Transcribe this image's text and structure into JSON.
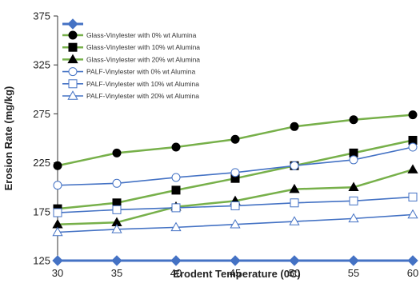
{
  "chart_data": {
    "type": "line",
    "xlabel": "Erodent Temperature (0C)",
    "ylabel": "Erosion Rate (mg/kg)",
    "xlim": [
      30,
      60
    ],
    "ylim": [
      125,
      375
    ],
    "xticks": [
      30,
      35,
      40,
      45,
      50,
      55,
      60
    ],
    "yticks": [
      125,
      175,
      225,
      275,
      325,
      375
    ],
    "x": [
      30,
      35,
      40,
      45,
      50,
      55,
      60
    ],
    "grid": false,
    "legend_position": "top-left",
    "baseline_series": {
      "values": [
        125,
        125,
        125,
        125,
        125,
        125,
        125
      ],
      "color": "#4472C4",
      "marker": "diamond",
      "legend_marker_only": true
    },
    "series": [
      {
        "name": "Glass-Vinylester with 0% wt Alumina",
        "values": [
          222,
          235,
          241,
          249,
          262,
          269,
          274
        ],
        "color": "#77B04A",
        "marker": "circle",
        "filled": true
      },
      {
        "name": "Glass-Vinylester with 10% wt Alumina",
        "values": [
          178,
          184,
          197,
          209,
          222,
          235,
          248
        ],
        "color": "#77B04A",
        "marker": "square",
        "filled": true
      },
      {
        "name": "Glass-Vinylester with 20% wt Alumina",
        "values": [
          162,
          164,
          180,
          186,
          198,
          200,
          218
        ],
        "color": "#77B04A",
        "marker": "triangle",
        "filled": true
      },
      {
        "name": "PALF-Vinylester with 0% wt Alumina",
        "values": [
          202,
          204,
          210,
          215,
          222,
          228,
          241
        ],
        "color": "#4472C4",
        "marker": "circle",
        "filled": false
      },
      {
        "name": "PALF-Vinylester with 10% wt Alumina",
        "values": [
          174,
          177,
          179,
          181,
          184,
          186,
          190
        ],
        "color": "#4472C4",
        "marker": "square",
        "filled": false
      },
      {
        "name": "PALF-Vinylester with 20% wt Alumina",
        "values": [
          154,
          157,
          159,
          162,
          165,
          168,
          172
        ],
        "color": "#4472C4",
        "marker": "triangle",
        "filled": false
      }
    ]
  }
}
